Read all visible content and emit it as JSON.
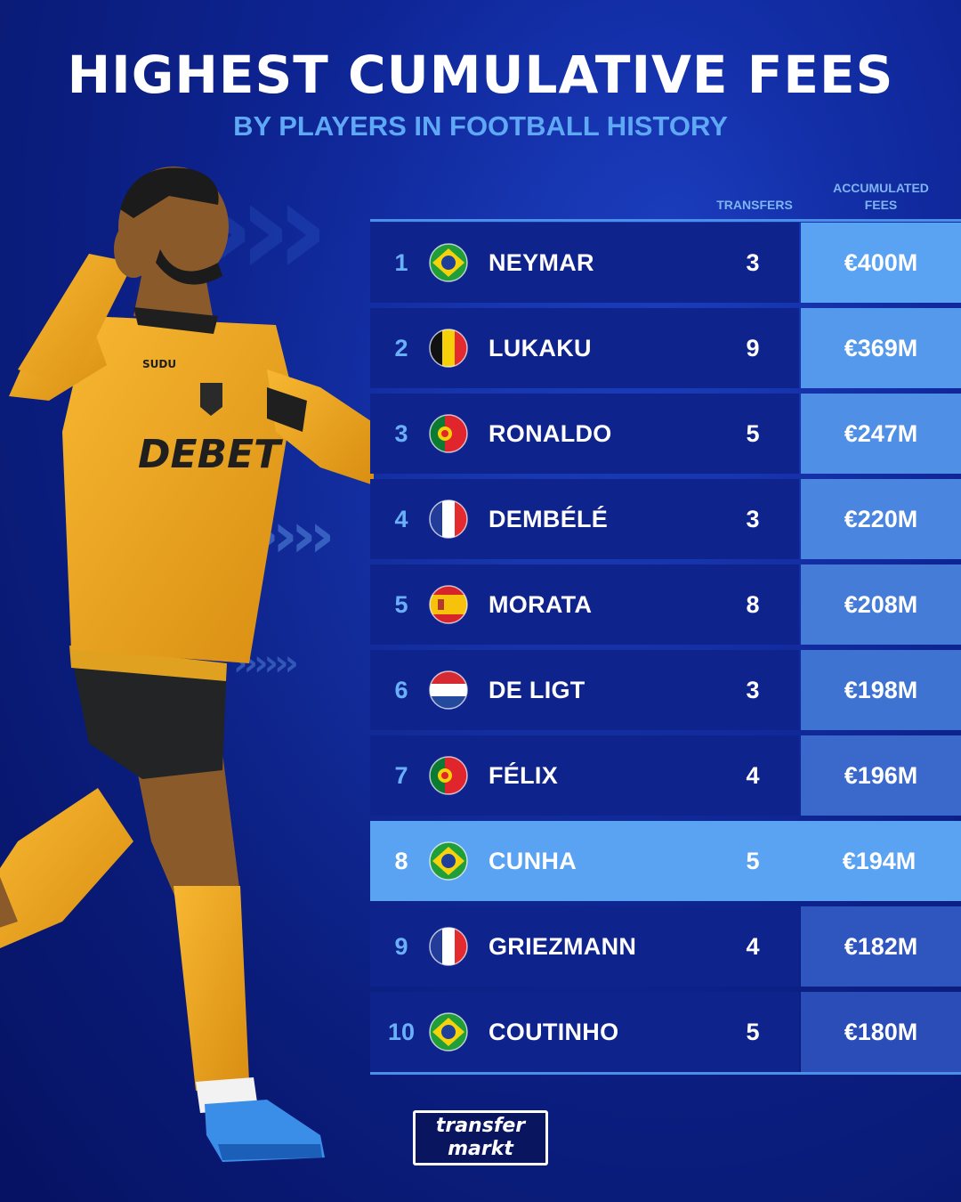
{
  "title": "HIGHEST CUMULATIVE FEES",
  "subtitle": "BY PLAYERS IN FOOTBALL HISTORY",
  "columns": {
    "transfers": "TRANSFERS",
    "fees_line1": "ACCUMULATED",
    "fees_line2": "FEES"
  },
  "colors": {
    "background": "#0e2596",
    "row": "#0f238d",
    "highlight_row": "#5aa2f2",
    "fee_top": "#5aa2f2",
    "fee_bottom": "#2a4db8",
    "accent_text": "#5fa8f5"
  },
  "rows": [
    {
      "rank": "1",
      "flag": "brazil-flag-icon",
      "name": "NEYMAR",
      "transfers": "3",
      "fee": "€400M"
    },
    {
      "rank": "2",
      "flag": "belgium-flag-icon",
      "name": "LUKAKU",
      "transfers": "9",
      "fee": "€369M"
    },
    {
      "rank": "3",
      "flag": "portugal-flag-icon",
      "name": "RONALDO",
      "transfers": "5",
      "fee": "€247M"
    },
    {
      "rank": "4",
      "flag": "france-flag-icon",
      "name": "DEMBÉLÉ",
      "transfers": "3",
      "fee": "€220M"
    },
    {
      "rank": "5",
      "flag": "spain-flag-icon",
      "name": "MORATA",
      "transfers": "8",
      "fee": "€208M"
    },
    {
      "rank": "6",
      "flag": "netherlands-flag-icon",
      "name": "DE LIGT",
      "transfers": "3",
      "fee": "€198M"
    },
    {
      "rank": "7",
      "flag": "portugal-flag-icon",
      "name": "FÉLIX",
      "transfers": "4",
      "fee": "€196M"
    },
    {
      "rank": "8",
      "flag": "brazil-flag-icon",
      "name": "CUNHA",
      "transfers": "5",
      "fee": "€194M",
      "highlighted": true
    },
    {
      "rank": "9",
      "flag": "france-flag-icon",
      "name": "GRIEZMANN",
      "transfers": "4",
      "fee": "€182M"
    },
    {
      "rank": "10",
      "flag": "brazil-flag-icon",
      "name": "COUTINHO",
      "transfers": "5",
      "fee": "€180M"
    }
  ],
  "player_image": {
    "shirt_sponsor": "DEBET",
    "shirt_maker": "SUDU"
  },
  "logo": {
    "line1": "transfer",
    "line2": "markt"
  }
}
